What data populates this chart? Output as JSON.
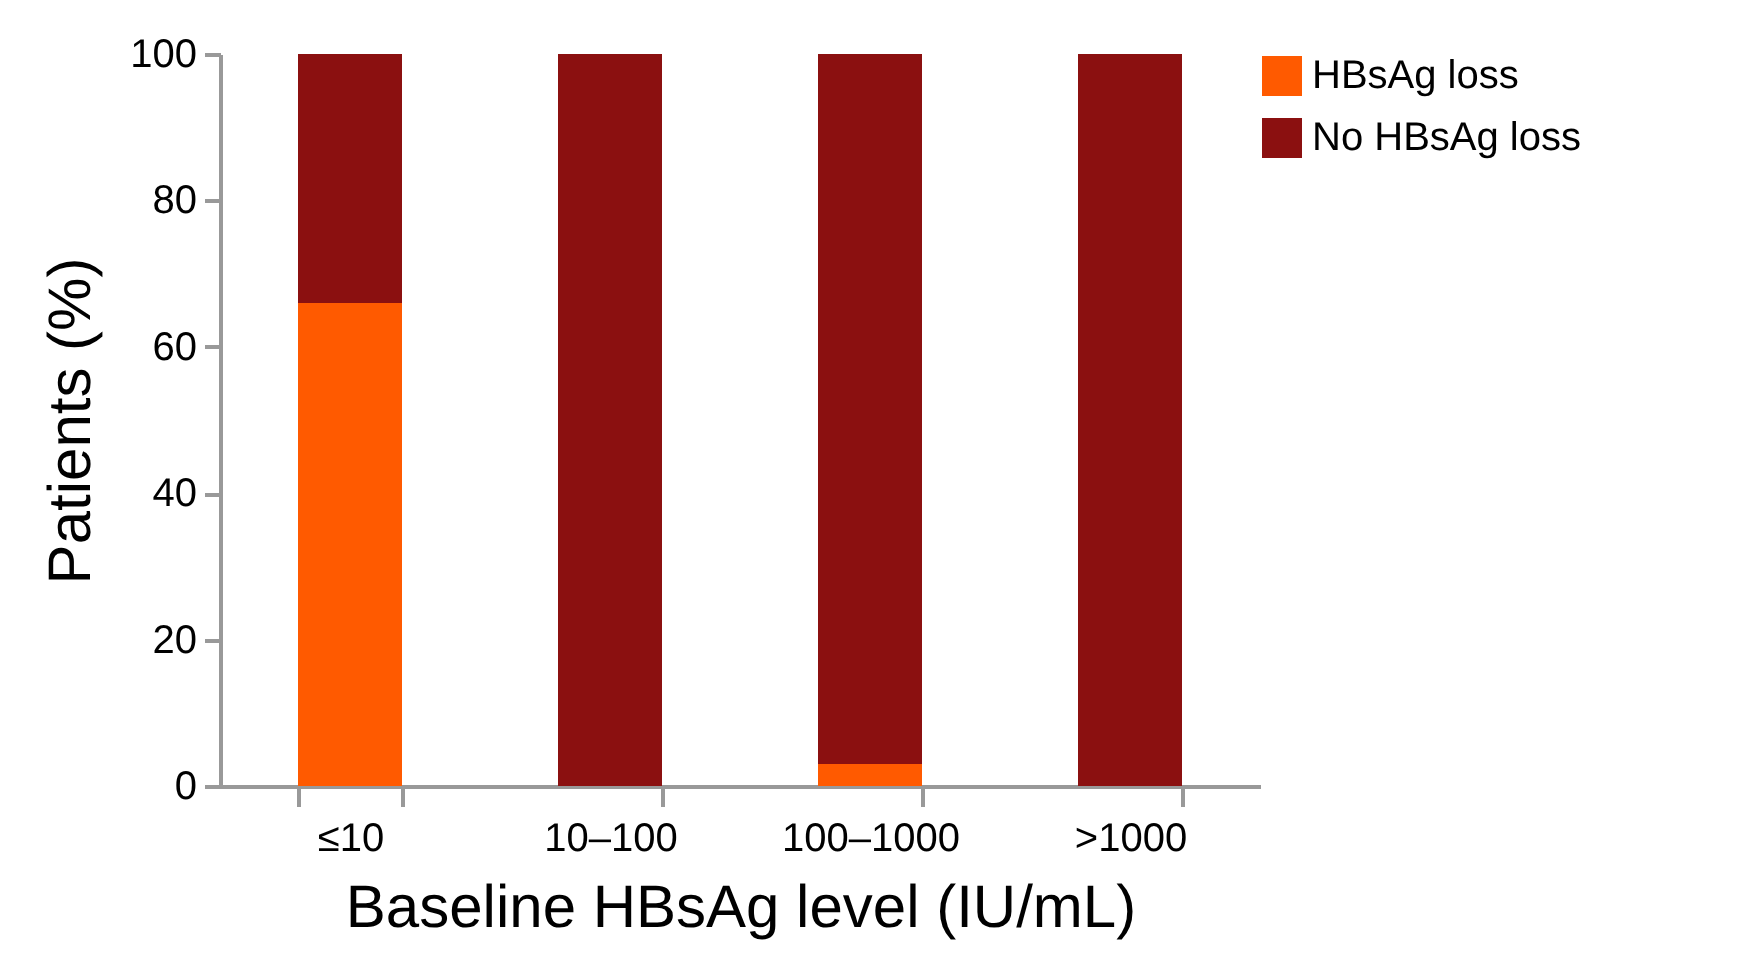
{
  "chart_data": {
    "type": "bar",
    "stacked": true,
    "xlabel": "Baseline HBsAg level (IU/mL)",
    "ylabel": "Patients (%)",
    "categories": [
      "≤10",
      "10–100",
      "100–1000",
      ">1000"
    ],
    "series": [
      {
        "name": "HBsAg loss",
        "color": "#ff5a00",
        "values": [
          66,
          0,
          3,
          0
        ]
      },
      {
        "name": "No HBsAg loss",
        "color": "#8b1010",
        "values": [
          34,
          100,
          97,
          100
        ]
      }
    ],
    "ylim": [
      0,
      100
    ],
    "yticks": [
      0,
      20,
      40,
      60,
      80,
      100
    ],
    "grid": false,
    "legend": "top right"
  }
}
